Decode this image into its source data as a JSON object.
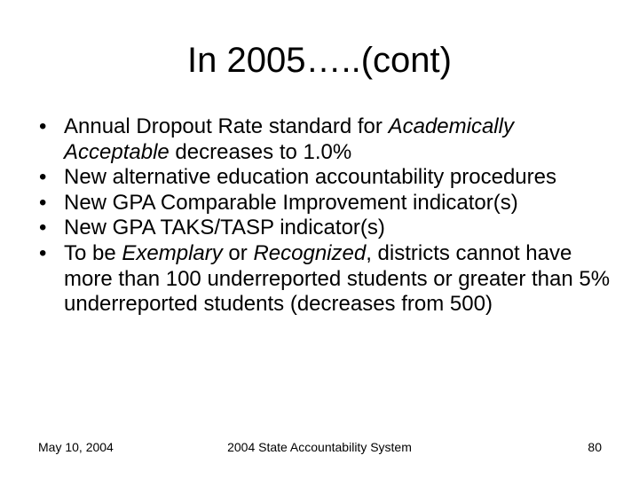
{
  "slide": {
    "title": "In 2005…..(cont)",
    "bullet_marker": "•",
    "bullets": [
      {
        "parts": [
          {
            "text": "Annual Dropout Rate standard for ",
            "italic": false
          },
          {
            "text": "Academically Acceptable",
            "italic": true
          },
          {
            "text": " decreases to 1.0%",
            "italic": false
          }
        ]
      },
      {
        "parts": [
          {
            "text": "New alternative education accountability procedures",
            "italic": false
          }
        ]
      },
      {
        "parts": [
          {
            "text": "New GPA Comparable Improvement indicator(s)",
            "italic": false
          }
        ]
      },
      {
        "parts": [
          {
            "text": "New GPA TAKS/TASP indicator(s)",
            "italic": false
          }
        ]
      },
      {
        "parts": [
          {
            "text": "To be ",
            "italic": false
          },
          {
            "text": "Exemplary",
            "italic": true
          },
          {
            "text": " or ",
            "italic": false
          },
          {
            "text": "Recognized",
            "italic": true
          },
          {
            "text": ", districts cannot have more than 100 underreported students or greater than 5% underreported students (decreases from 500)",
            "italic": false
          }
        ]
      }
    ]
  },
  "footer": {
    "date": "May 10, 2004",
    "center": "2004 State Accountability System",
    "page_number": "80"
  }
}
